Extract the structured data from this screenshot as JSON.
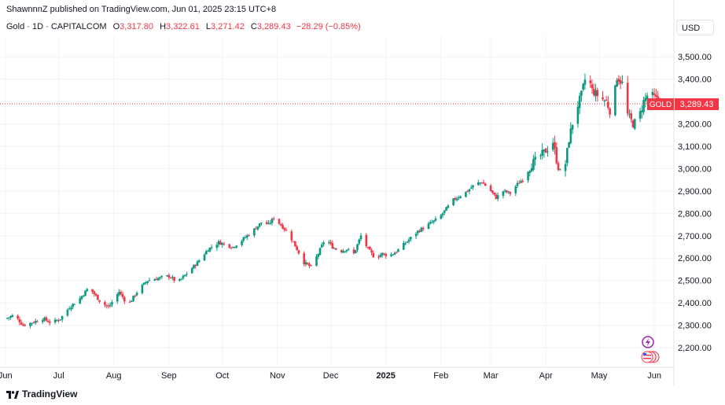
{
  "header": {
    "published": "ShawnnnZ published on TradingView.com, Jun 01, 2025 23:15 UTC+8",
    "symbol": "Gold · 1D · CAPITALCOM",
    "o_label": "O",
    "o_value": "3,317.80",
    "h_label": "H",
    "h_value": "3,322.61",
    "l_label": "L",
    "l_value": "3,271.42",
    "c_label": "C",
    "c_value": "3,289.43",
    "change": "−28.29 (−0.85%)"
  },
  "currency_button": "USD",
  "price_tag": {
    "symbol": "GOLD",
    "value": "3,289.43"
  },
  "brand": "TradingView",
  "colors": {
    "up": "#089981",
    "down": "#f23645",
    "grid": "#f0f3fa",
    "axis_text": "#131722"
  },
  "chart_data": {
    "type": "candlestick",
    "title": "",
    "xlabel": "",
    "ylabel": "",
    "ylim": [
      2130,
      3560
    ],
    "y_ticks": [
      "2,200.00",
      "2,300.00",
      "2,400.00",
      "2,500.00",
      "2,600.00",
      "2,700.00",
      "2,800.00",
      "2,900.00",
      "3,000.00",
      "3,100.00",
      "3,200.00",
      "3,300.00",
      "3,400.00",
      "3,500.00"
    ],
    "x_ticks": [
      {
        "label": "Jun",
        "day": 0
      },
      {
        "label": "Jul",
        "day": 30
      },
      {
        "label": "Aug",
        "day": 61
      },
      {
        "label": "Sep",
        "day": 92
      },
      {
        "label": "Oct",
        "day": 122
      },
      {
        "label": "Nov",
        "day": 153
      },
      {
        "label": "Dec",
        "day": 183
      },
      {
        "label": "2025",
        "day": 214
      },
      {
        "label": "Feb",
        "day": 245
      },
      {
        "label": "Mar",
        "day": 273
      },
      {
        "label": "Apr",
        "day": 304
      },
      {
        "label": "May",
        "day": 334
      },
      {
        "label": "Jun",
        "day": 365
      }
    ],
    "x_range_days": [
      -3,
      376
    ],
    "last_price": 3289.43,
    "anchors": [
      [
        0,
        2330
      ],
      [
        5,
        2345
      ],
      [
        10,
        2300
      ],
      [
        16,
        2315
      ],
      [
        21,
        2330
      ],
      [
        26,
        2310
      ],
      [
        31,
        2330
      ],
      [
        36,
        2380
      ],
      [
        42,
        2420
      ],
      [
        47,
        2470
      ],
      [
        53,
        2410
      ],
      [
        58,
        2380
      ],
      [
        64,
        2450
      ],
      [
        69,
        2390
      ],
      [
        75,
        2460
      ],
      [
        80,
        2500
      ],
      [
        86,
        2510
      ],
      [
        92,
        2520
      ],
      [
        97,
        2490
      ],
      [
        103,
        2540
      ],
      [
        108,
        2580
      ],
      [
        114,
        2640
      ],
      [
        120,
        2670
      ],
      [
        124,
        2660
      ],
      [
        128,
        2650
      ],
      [
        133,
        2680
      ],
      [
        139,
        2720
      ],
      [
        144,
        2760
      ],
      [
        148,
        2750
      ],
      [
        151,
        2780
      ],
      [
        156,
        2740
      ],
      [
        160,
        2700
      ],
      [
        164,
        2640
      ],
      [
        168,
        2580
      ],
      [
        172,
        2560
      ],
      [
        176,
        2620
      ],
      [
        180,
        2690
      ],
      [
        184,
        2650
      ],
      [
        188,
        2630
      ],
      [
        192,
        2640
      ],
      [
        196,
        2620
      ],
      [
        200,
        2700
      ],
      [
        204,
        2640
      ],
      [
        208,
        2600
      ],
      [
        212,
        2620
      ],
      [
        216,
        2610
      ],
      [
        220,
        2630
      ],
      [
        224,
        2660
      ],
      [
        228,
        2690
      ],
      [
        232,
        2720
      ],
      [
        236,
        2740
      ],
      [
        240,
        2760
      ],
      [
        244,
        2780
      ],
      [
        248,
        2820
      ],
      [
        252,
        2860
      ],
      [
        256,
        2880
      ],
      [
        260,
        2900
      ],
      [
        264,
        2930
      ],
      [
        268,
        2940
      ],
      [
        272,
        2910
      ],
      [
        276,
        2870
      ],
      [
        280,
        2900
      ],
      [
        284,
        2890
      ],
      [
        288,
        2930
      ],
      [
        292,
        2960
      ],
      [
        296,
        3020
      ],
      [
        300,
        3050
      ],
      [
        304,
        3080
      ],
      [
        308,
        3120
      ],
      [
        311,
        3000
      ],
      [
        314,
        2970
      ],
      [
        317,
        3130
      ],
      [
        320,
        3240
      ],
      [
        324,
        3330
      ],
      [
        327,
        3430
      ],
      [
        330,
        3350
      ],
      [
        334,
        3320
      ],
      [
        338,
        3300
      ],
      [
        341,
        3240
      ],
      [
        344,
        3410
      ],
      [
        347,
        3380
      ],
      [
        350,
        3240
      ],
      [
        353,
        3200
      ],
      [
        356,
        3220
      ],
      [
        359,
        3300
      ],
      [
        362,
        3340
      ],
      [
        366,
        3310
      ],
      [
        370,
        3289
      ]
    ]
  }
}
